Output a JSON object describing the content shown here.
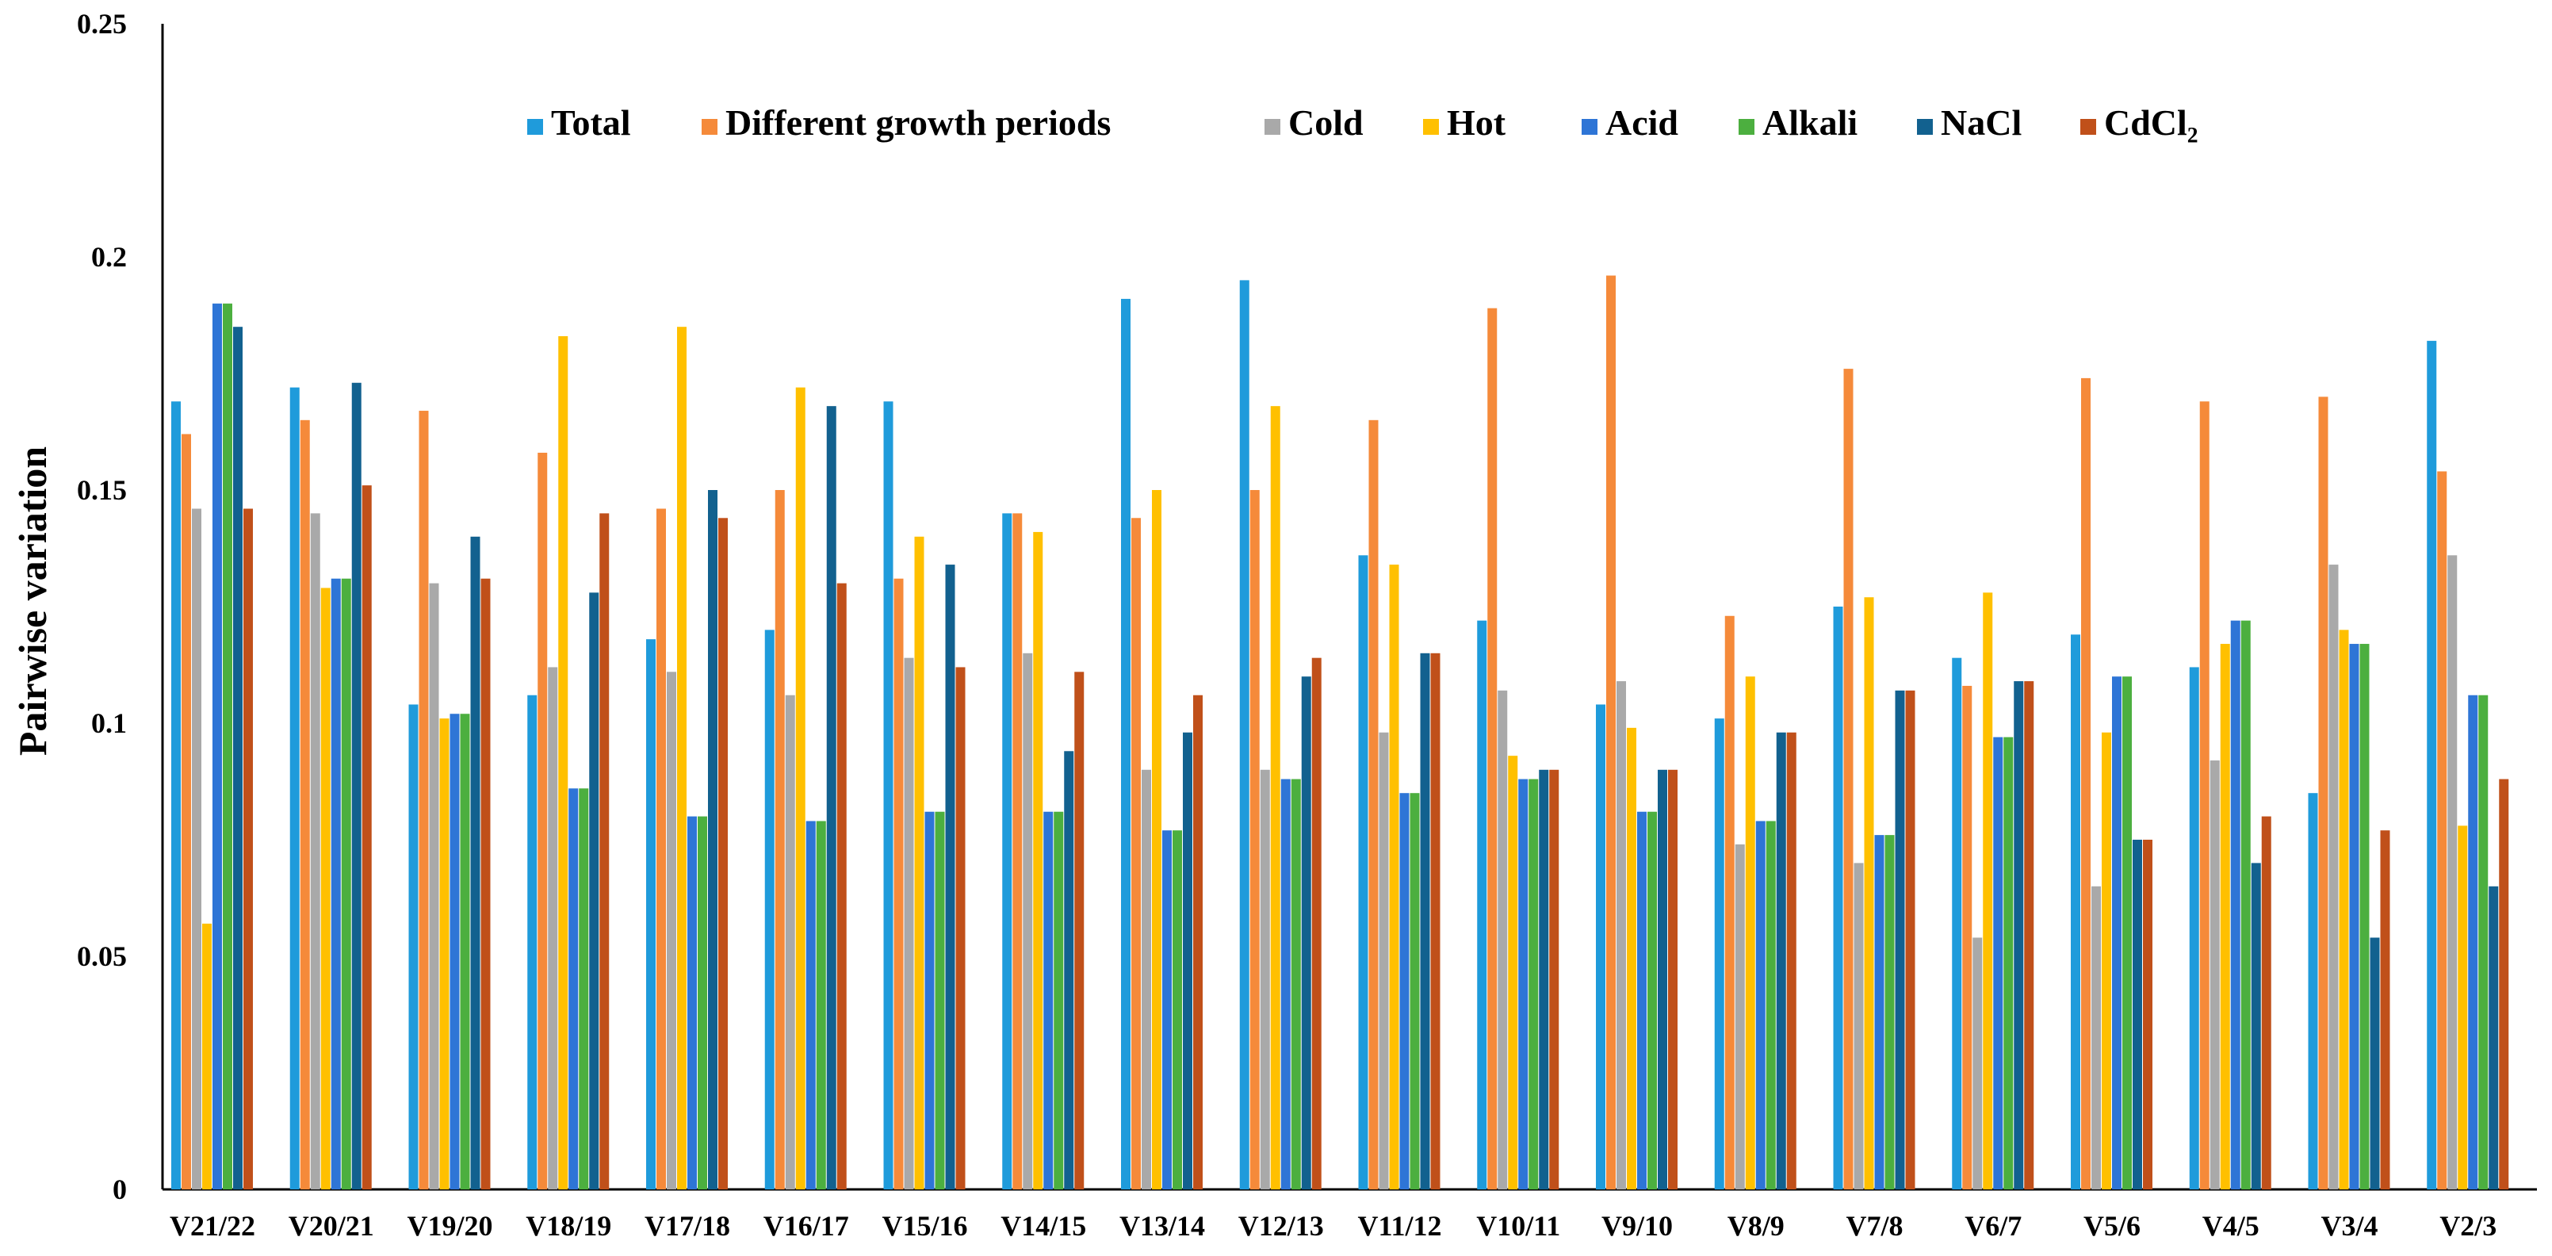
{
  "chart_data": {
    "type": "bar",
    "title": "",
    "xlabel": "",
    "ylabel": "Pairwise variation",
    "ylim": [
      0,
      0.25
    ],
    "yticks": [
      "0",
      "0.05",
      "0.1",
      "0.15",
      "0.2",
      "0.25"
    ],
    "grid": false,
    "legend_position": "top",
    "categories": [
      "V21/22",
      "V20/21",
      "V19/20",
      "V18/19",
      "V17/18",
      "V16/17",
      "V15/16",
      "V14/15",
      "V13/14",
      "V12/13",
      "V11/12",
      "V10/11",
      "V9/10",
      "V8/9",
      "V7/8",
      "V6/7",
      "V5/6",
      "V4/5",
      "V3/4",
      "V2/3"
    ],
    "series": [
      {
        "name": "Total",
        "color": "#1F9BDB",
        "values": [
          0.169,
          0.172,
          0.104,
          0.106,
          0.118,
          0.12,
          0.169,
          0.145,
          0.191,
          0.195,
          0.136,
          0.122,
          0.104,
          0.101,
          0.125,
          0.114,
          0.119,
          0.112,
          0.085,
          0.182
        ]
      },
      {
        "name": "Different growth periods",
        "color": "#F58A3A",
        "values": [
          0.162,
          0.165,
          0.167,
          0.158,
          0.146,
          0.15,
          0.131,
          0.145,
          0.144,
          0.15,
          0.165,
          0.189,
          0.196,
          0.123,
          0.176,
          0.108,
          0.174,
          0.169,
          0.17,
          0.154
        ]
      },
      {
        "name": "Cold",
        "color": "#A9A9A9",
        "values": [
          0.146,
          0.145,
          0.13,
          0.112,
          0.111,
          0.106,
          0.114,
          0.115,
          0.09,
          0.09,
          0.098,
          0.107,
          0.109,
          0.074,
          0.07,
          0.054,
          0.065,
          0.092,
          0.134,
          0.136
        ]
      },
      {
        "name": "Hot",
        "color": "#FFC000",
        "values": [
          0.057,
          0.129,
          0.101,
          0.183,
          0.185,
          0.172,
          0.14,
          0.141,
          0.15,
          0.168,
          0.134,
          0.093,
          0.099,
          0.11,
          0.127,
          0.128,
          0.098,
          0.117,
          0.12,
          0.078
        ]
      },
      {
        "name": "Acid",
        "color": "#2E75D6",
        "values": [
          0.19,
          0.131,
          0.102,
          0.086,
          0.08,
          0.079,
          0.081,
          0.081,
          0.077,
          0.088,
          0.085,
          0.088,
          0.081,
          0.079,
          0.076,
          0.097,
          0.11,
          0.122,
          0.117,
          0.106
        ]
      },
      {
        "name": "Alkali",
        "color": "#4CAF3F",
        "values": [
          0.19,
          0.131,
          0.102,
          0.086,
          0.08,
          0.079,
          0.081,
          0.081,
          0.077,
          0.088,
          0.085,
          0.088,
          0.081,
          0.079,
          0.076,
          0.097,
          0.11,
          0.122,
          0.117,
          0.106
        ]
      },
      {
        "name": "NaCl",
        "color": "#12618F",
        "values": [
          0.185,
          0.173,
          0.14,
          0.128,
          0.15,
          0.168,
          0.134,
          0.094,
          0.098,
          0.11,
          0.115,
          0.09,
          0.09,
          0.098,
          0.107,
          0.109,
          0.075,
          0.07,
          0.054,
          0.065
        ]
      },
      {
        "name": "CdCl₂",
        "color": "#C0501A",
        "values": [
          0.146,
          0.151,
          0.131,
          0.145,
          0.144,
          0.13,
          0.112,
          0.111,
          0.106,
          0.114,
          0.115,
          0.09,
          0.09,
          0.098,
          0.107,
          0.109,
          0.075,
          0.08,
          0.077,
          0.088
        ]
      }
    ]
  }
}
